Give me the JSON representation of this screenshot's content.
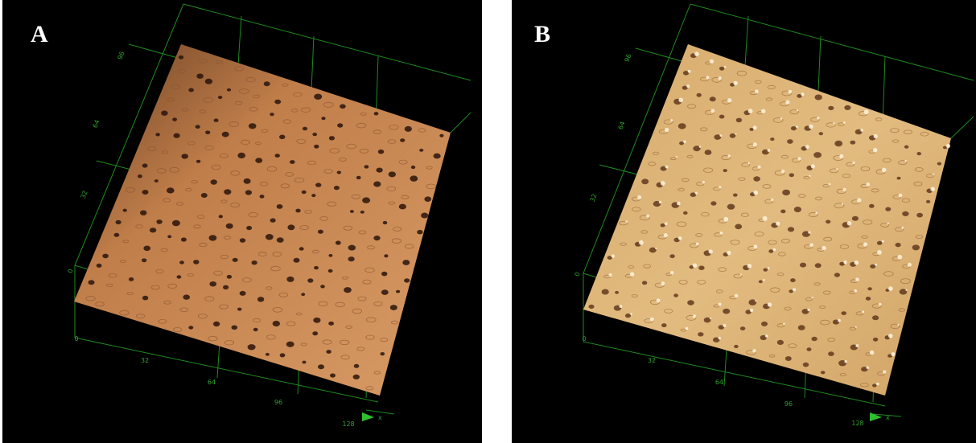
{
  "panels": [
    {
      "label": "A",
      "left_ticks": [
        96,
        64,
        32,
        0
      ],
      "bottom_ticks": [
        0,
        32,
        64,
        96,
        128
      ],
      "axis_label": "x"
    },
    {
      "label": "B",
      "left_ticks": [
        96,
        64,
        32,
        0
      ],
      "bottom_ticks": [
        0,
        32,
        64,
        96,
        128
      ],
      "axis_label": "x"
    }
  ]
}
